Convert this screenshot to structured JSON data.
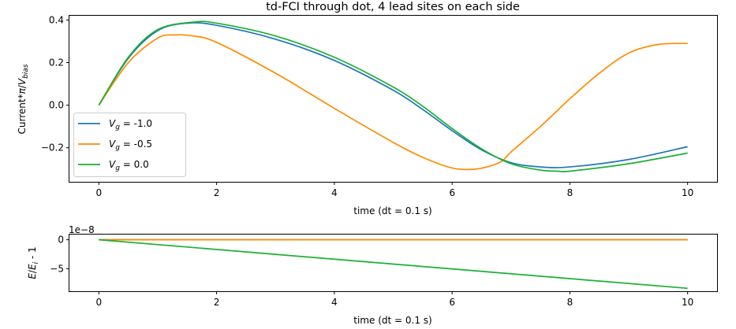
{
  "chart_data": [
    {
      "type": "line",
      "title": "td-FCI through dot, 4 lead sites on each side",
      "xlabel": "time (dt = 0.1 s)",
      "ylabel": "Current*π/V_bias",
      "xlim": [
        -0.5,
        10.5
      ],
      "ylim": [
        -0.36,
        0.42
      ],
      "xticks": [
        0,
        2,
        4,
        6,
        8,
        10
      ],
      "xtick_labels": [
        "0",
        "2",
        "4",
        "6",
        "8",
        "10"
      ],
      "yticks": [
        -0.2,
        0.0,
        0.2,
        0.4
      ],
      "ytick_labels": [
        "−0.2",
        "0.0",
        "0.2",
        "0.4"
      ],
      "grid": false,
      "legend_placement": "center-left",
      "series": [
        {
          "name": "Vg = -1.0",
          "color": "#1f77b4",
          "x": [
            0,
            0.5,
            1.0,
            1.5,
            2.0,
            3.0,
            4.0,
            5.0,
            5.5,
            6.0,
            6.5,
            7.0,
            7.5,
            8.0,
            9.0,
            10.0
          ],
          "values": [
            0.0,
            0.22,
            0.35,
            0.385,
            0.375,
            0.31,
            0.21,
            0.07,
            -0.02,
            -0.12,
            -0.21,
            -0.27,
            -0.29,
            -0.29,
            -0.255,
            -0.195
          ]
        },
        {
          "name": "Vg = -0.5",
          "color": "#ff8c00",
          "x": [
            0,
            0.5,
            1.0,
            1.3,
            1.6,
            2.0,
            3.0,
            4.0,
            5.0,
            5.5,
            6.0,
            6.4,
            6.8,
            7.0,
            7.5,
            8.0,
            8.5,
            9.0,
            9.5,
            10.0
          ],
          "values": [
            0.0,
            0.2,
            0.315,
            0.33,
            0.325,
            0.295,
            0.15,
            -0.015,
            -0.175,
            -0.245,
            -0.295,
            -0.3,
            -0.27,
            -0.22,
            -0.1,
            0.03,
            0.15,
            0.245,
            0.285,
            0.29
          ]
        },
        {
          "name": "Vg = 0.0",
          "color": "#1ab033",
          "x": [
            0,
            0.5,
            1.0,
            1.6,
            2.0,
            3.0,
            4.0,
            5.0,
            5.5,
            6.0,
            6.5,
            7.0,
            7.5,
            7.8,
            8.0,
            9.0,
            10.0
          ],
          "values": [
            0.0,
            0.225,
            0.355,
            0.39,
            0.385,
            0.325,
            0.225,
            0.085,
            -0.005,
            -0.11,
            -0.205,
            -0.275,
            -0.305,
            -0.31,
            -0.31,
            -0.275,
            -0.225
          ]
        }
      ]
    },
    {
      "type": "line",
      "xlabel": "time (dt = 0.1 s)",
      "ylabel": "E/E_i - 1",
      "offset_text": "1e−8",
      "xlim": [
        -0.5,
        10.5
      ],
      "ylim": [
        -8.9,
        0.9
      ],
      "xticks": [
        0,
        2,
        4,
        6,
        8,
        10
      ],
      "xtick_labels": [
        "0",
        "2",
        "4",
        "6",
        "8",
        "10"
      ],
      "yticks": [
        -5,
        0
      ],
      "ytick_labels": [
        "−5",
        "0"
      ],
      "grid": false,
      "series": [
        {
          "color": "#1f77b4",
          "x": [
            0,
            10
          ],
          "values": [
            0,
            0
          ]
        },
        {
          "color": "#ff8c00",
          "x": [
            0,
            10
          ],
          "values": [
            0,
            0
          ]
        },
        {
          "color": "#1ab033",
          "x": [
            0,
            10
          ],
          "values": [
            0,
            -8.4
          ]
        }
      ]
    }
  ]
}
